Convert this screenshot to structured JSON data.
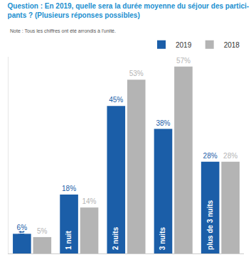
{
  "chart_data": {
    "type": "bar",
    "title": "Question : En 2019, quelle sera la durée moyenne du séjour des partici-\npants ? (Plusieurs réponses possibles)",
    "subtitle": "Note : Tous les chiffres ont été arrondis à l'unité.",
    "categories": [
      "0 nuit",
      "1 nuit",
      "2 nuits",
      "3 nuits",
      "plus de 3 nuits"
    ],
    "series": [
      {
        "name": "2019",
        "color": "#1b5ea8",
        "values": [
          6,
          18,
          45,
          38,
          28
        ],
        "value_labels": [
          "6%",
          "18%",
          "45%",
          "38%",
          "28%"
        ]
      },
      {
        "name": "2018",
        "color": "#b4b4b4",
        "values": [
          5,
          14,
          53,
          57,
          28
        ],
        "value_labels": [
          "5%",
          "14%",
          "53%",
          "57%",
          "28%"
        ]
      }
    ],
    "ylim": [
      0,
      60
    ],
    "grid": false,
    "legend": "top right",
    "data_labels": true,
    "tick_labels": false
  }
}
